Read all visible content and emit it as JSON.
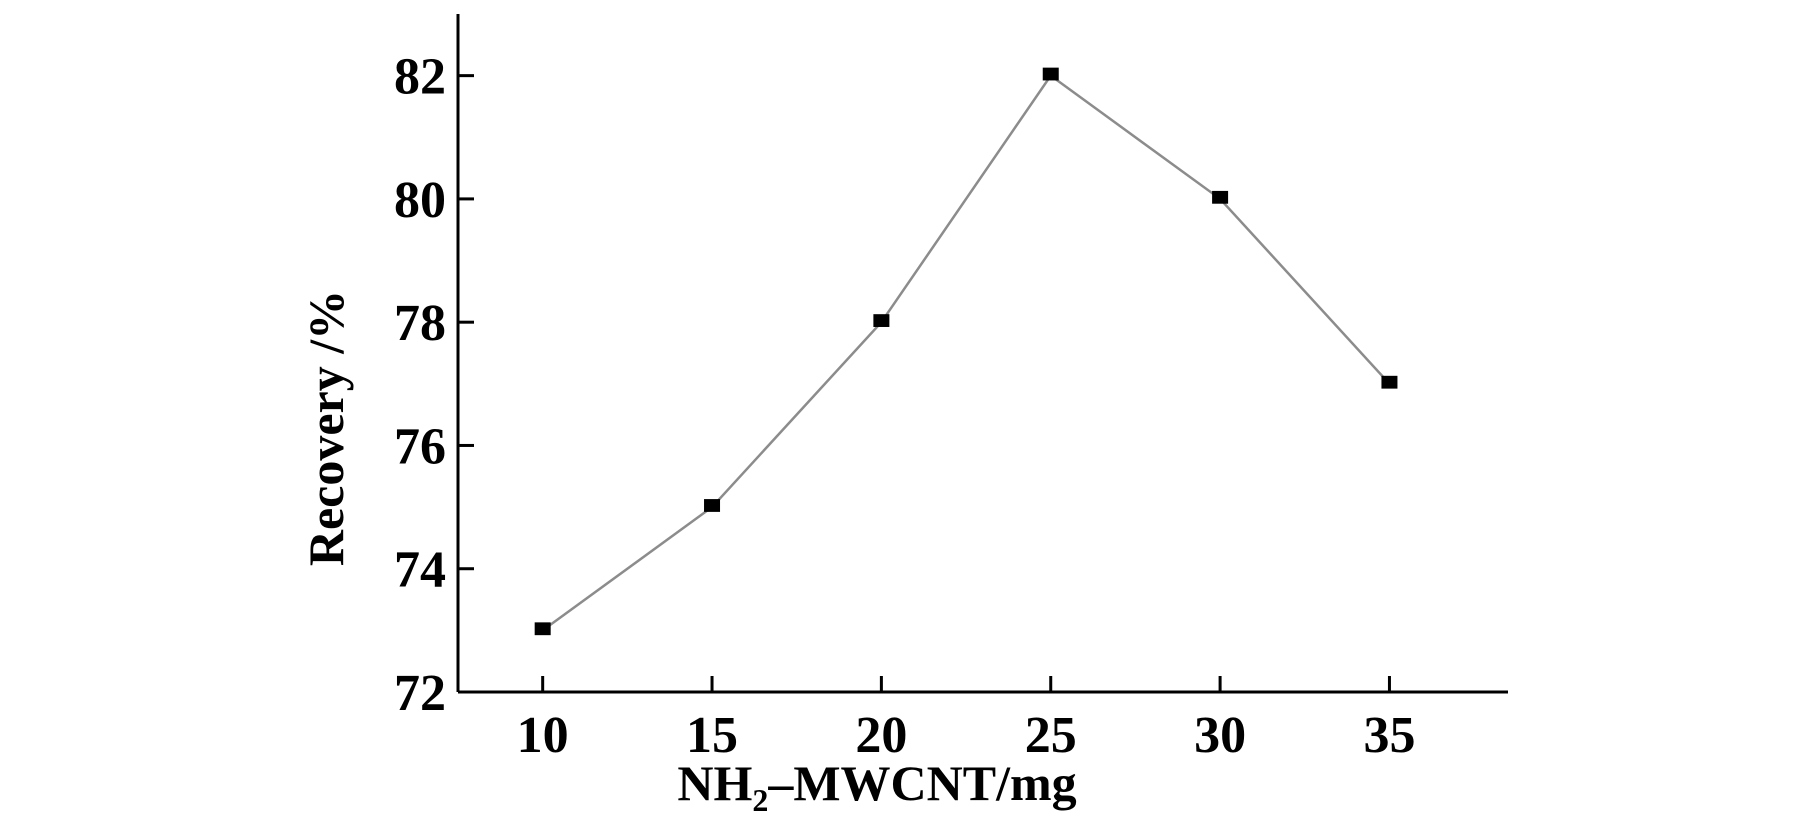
{
  "chart_data": {
    "type": "line",
    "x": [
      10,
      15,
      20,
      25,
      30,
      35
    ],
    "series": [
      {
        "values": [
          73,
          75,
          78,
          82,
          80,
          77
        ]
      }
    ],
    "xlabel": {
      "prefix": "NH",
      "subscript": "2",
      "suffix": "–MWCNT/mg"
    },
    "ylabel": "Recovery /%",
    "xticks": [
      "10",
      "15",
      "20",
      "25",
      "30",
      "35"
    ],
    "yticks": [
      "72",
      "74",
      "76",
      "78",
      "80",
      "82"
    ],
    "xlim": [
      7.5,
      38.5
    ],
    "ylim": [
      72,
      83
    ],
    "grid": false,
    "legend": "none",
    "colors": {
      "line": "#8c8c8c",
      "marker": "#000000",
      "axis": "#000000"
    }
  }
}
